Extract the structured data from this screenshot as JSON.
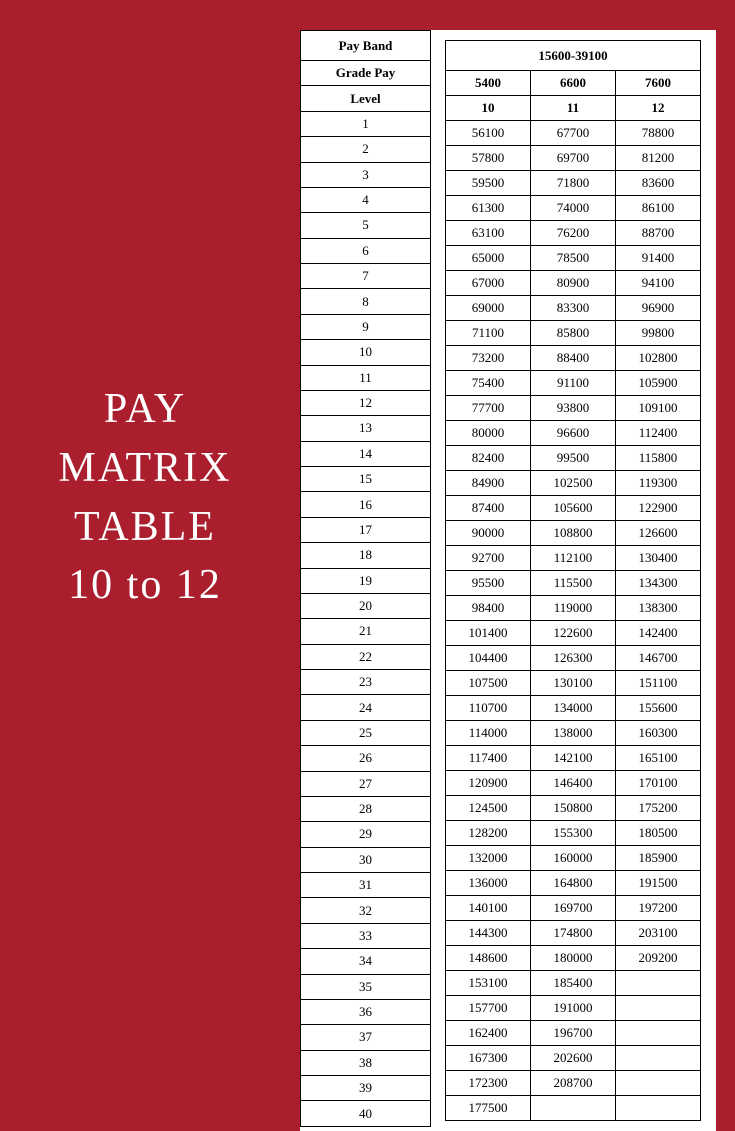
{
  "title": {
    "line1": "PAY",
    "line2": "MATRIX",
    "line3": "TABLE",
    "line4": "10 to  12"
  },
  "background_color": "#aa1e2e",
  "text_color": "#ffffff",
  "table": {
    "pay_band_label": "Pay Band",
    "pay_band_value": "15600-39100",
    "grade_pay_label": "Grade Pay",
    "grade_pay_values": [
      "5400",
      "6600",
      "7600"
    ],
    "level_label": "Level",
    "level_values": [
      "10",
      "11",
      "12"
    ],
    "rows": [
      {
        "idx": "1",
        "c1": "56100",
        "c2": "67700",
        "c3": "78800"
      },
      {
        "idx": "2",
        "c1": "57800",
        "c2": "69700",
        "c3": "81200"
      },
      {
        "idx": "3",
        "c1": "59500",
        "c2": "71800",
        "c3": "83600"
      },
      {
        "idx": "4",
        "c1": "61300",
        "c2": "74000",
        "c3": "86100"
      },
      {
        "idx": "5",
        "c1": "63100",
        "c2": "76200",
        "c3": "88700"
      },
      {
        "idx": "6",
        "c1": "65000",
        "c2": "78500",
        "c3": "91400"
      },
      {
        "idx": "7",
        "c1": "67000",
        "c2": "80900",
        "c3": "94100"
      },
      {
        "idx": "8",
        "c1": "69000",
        "c2": "83300",
        "c3": "96900"
      },
      {
        "idx": "9",
        "c1": "71100",
        "c2": "85800",
        "c3": "99800"
      },
      {
        "idx": "10",
        "c1": "73200",
        "c2": "88400",
        "c3": "102800"
      },
      {
        "idx": "11",
        "c1": "75400",
        "c2": "91100",
        "c3": "105900"
      },
      {
        "idx": "12",
        "c1": "77700",
        "c2": "93800",
        "c3": "109100"
      },
      {
        "idx": "13",
        "c1": "80000",
        "c2": "96600",
        "c3": "112400"
      },
      {
        "idx": "14",
        "c1": "82400",
        "c2": "99500",
        "c3": "115800"
      },
      {
        "idx": "15",
        "c1": "84900",
        "c2": "102500",
        "c3": "119300"
      },
      {
        "idx": "16",
        "c1": "87400",
        "c2": "105600",
        "c3": "122900"
      },
      {
        "idx": "17",
        "c1": "90000",
        "c2": "108800",
        "c3": "126600"
      },
      {
        "idx": "18",
        "c1": "92700",
        "c2": "112100",
        "c3": "130400"
      },
      {
        "idx": "19",
        "c1": "95500",
        "c2": "115500",
        "c3": "134300"
      },
      {
        "idx": "20",
        "c1": "98400",
        "c2": "119000",
        "c3": "138300"
      },
      {
        "idx": "21",
        "c1": "101400",
        "c2": "122600",
        "c3": "142400"
      },
      {
        "idx": "22",
        "c1": "104400",
        "c2": "126300",
        "c3": "146700"
      },
      {
        "idx": "23",
        "c1": "107500",
        "c2": "130100",
        "c3": "151100"
      },
      {
        "idx": "24",
        "c1": "110700",
        "c2": "134000",
        "c3": "155600"
      },
      {
        "idx": "25",
        "c1": "114000",
        "c2": "138000",
        "c3": "160300"
      },
      {
        "idx": "26",
        "c1": "117400",
        "c2": "142100",
        "c3": "165100"
      },
      {
        "idx": "27",
        "c1": "120900",
        "c2": "146400",
        "c3": "170100"
      },
      {
        "idx": "28",
        "c1": "124500",
        "c2": "150800",
        "c3": "175200"
      },
      {
        "idx": "29",
        "c1": "128200",
        "c2": "155300",
        "c3": "180500"
      },
      {
        "idx": "30",
        "c1": "132000",
        "c2": "160000",
        "c3": "185900"
      },
      {
        "idx": "31",
        "c1": "136000",
        "c2": "164800",
        "c3": "191500"
      },
      {
        "idx": "32",
        "c1": "140100",
        "c2": "169700",
        "c3": "197200"
      },
      {
        "idx": "33",
        "c1": "144300",
        "c2": "174800",
        "c3": "203100"
      },
      {
        "idx": "34",
        "c1": "148600",
        "c2": "180000",
        "c3": "209200"
      },
      {
        "idx": "35",
        "c1": "153100",
        "c2": "185400",
        "c3": ""
      },
      {
        "idx": "36",
        "c1": "157700",
        "c2": "191000",
        "c3": ""
      },
      {
        "idx": "37",
        "c1": "162400",
        "c2": "196700",
        "c3": ""
      },
      {
        "idx": "38",
        "c1": "167300",
        "c2": "202600",
        "c3": ""
      },
      {
        "idx": "39",
        "c1": "172300",
        "c2": "208700",
        "c3": ""
      },
      {
        "idx": "40",
        "c1": "177500",
        "c2": "",
        "c3": ""
      }
    ]
  }
}
